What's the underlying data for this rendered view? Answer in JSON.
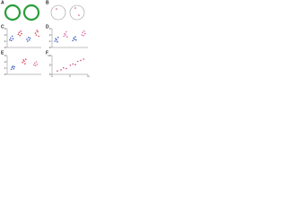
{
  "panels": [
    {
      "label": "A"
    },
    {
      "label": "B"
    },
    {
      "label": "C"
    },
    {
      "label": "D"
    },
    {
      "label": "E"
    },
    {
      "label": "F"
    }
  ],
  "chart_data": [
    {
      "type": "strip",
      "ylim": [
        0,
        3
      ],
      "yticks": [
        0,
        1,
        2,
        3
      ],
      "series": [
        {
          "color": "#3b5fc0",
          "values": [
            1.2,
            1.5,
            1.1,
            1.8,
            1.4
          ]
        },
        {
          "color": "#d9434f",
          "values": [
            2.1,
            2.4,
            1.9,
            2.6,
            2.2
          ]
        },
        {
          "color": "#3b5fc0",
          "values": [
            1.3,
            1.0,
            1.6,
            1.2,
            1.5
          ]
        },
        {
          "color": "#d9434f",
          "values": [
            2.3,
            2.0,
            2.7,
            2.5,
            1.8
          ]
        }
      ]
    },
    {
      "type": "strip",
      "ylim": [
        0,
        3
      ],
      "yticks": [
        0,
        1,
        2,
        3
      ],
      "series": [
        {
          "color": "#3b5fc0",
          "values": [
            1.0,
            1.4,
            1.2,
            0.9,
            1.6
          ]
        },
        {
          "color": "#e06fa8",
          "values": [
            1.8,
            2.2,
            2.0,
            2.5,
            1.7
          ]
        },
        {
          "color": "#3b5fc0",
          "values": [
            1.1,
            1.5,
            1.3,
            1.7,
            1.2
          ]
        },
        {
          "color": "#e06fa8",
          "values": [
            2.0,
            2.4,
            1.9,
            2.6,
            2.2
          ]
        }
      ]
    },
    {
      "type": "strip",
      "ylim": [
        0,
        3
      ],
      "yticks": [
        0,
        1,
        2,
        3
      ],
      "series": [
        {
          "color": "#3b5fc0",
          "values": [
            0.8,
            1.1,
            1.3,
            0.9,
            1.2
          ]
        },
        {
          "color": "#d9434f",
          "values": [
            1.9,
            2.3,
            2.1,
            1.7,
            2.4
          ]
        },
        {
          "color": "#e06fa8",
          "values": [
            1.5,
            1.8,
            1.4,
            2.0,
            1.6
          ]
        }
      ]
    },
    {
      "type": "scatter",
      "xlim": [
        0,
        10
      ],
      "ylim": [
        0,
        10
      ],
      "xticks": [
        0,
        5,
        10
      ],
      "yticks": [
        0,
        5,
        10
      ],
      "color": "#d04a8a",
      "x": [
        1.5,
        2.5,
        3.2,
        4.0,
        5.1,
        5.8,
        6.5,
        7.2,
        8.0,
        8.8
      ],
      "values": [
        1.8,
        2.4,
        3.5,
        3.1,
        4.8,
        5.5,
        5.2,
        6.9,
        7.4,
        8.1
      ]
    }
  ]
}
